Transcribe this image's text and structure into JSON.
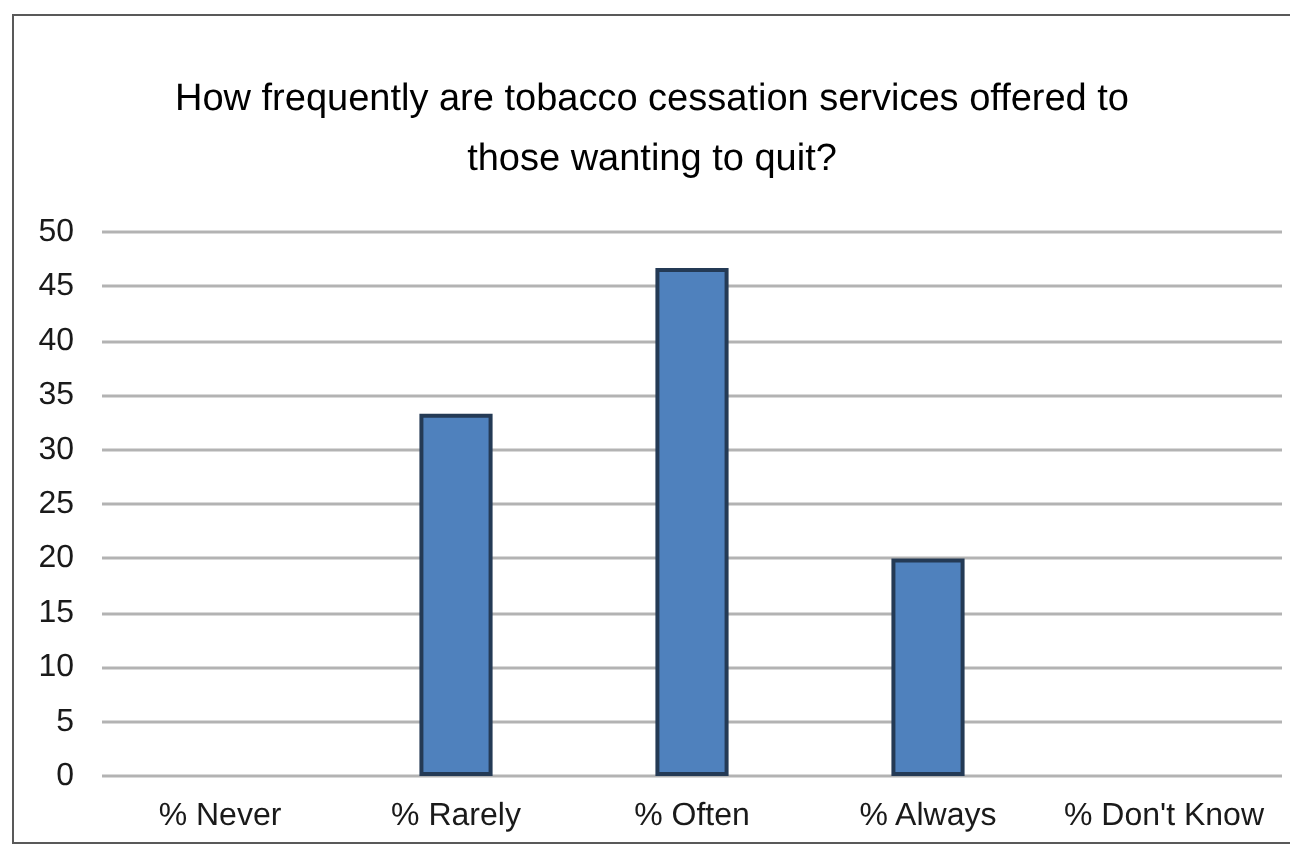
{
  "chart_data": {
    "type": "bar",
    "title": "How frequently are tobacco cessation services offered to those wanting to quit?",
    "categories": [
      "% Never",
      "% Rarely",
      "% Often",
      "% Always",
      "% Don't Know"
    ],
    "values": [
      0,
      33.3,
      46.7,
      20,
      0
    ],
    "color": "#4f81bd",
    "ylim": [
      0,
      50
    ],
    "yticks": [
      0,
      5,
      10,
      15,
      20,
      25,
      30,
      35,
      40,
      45,
      50
    ],
    "grid": "y"
  }
}
